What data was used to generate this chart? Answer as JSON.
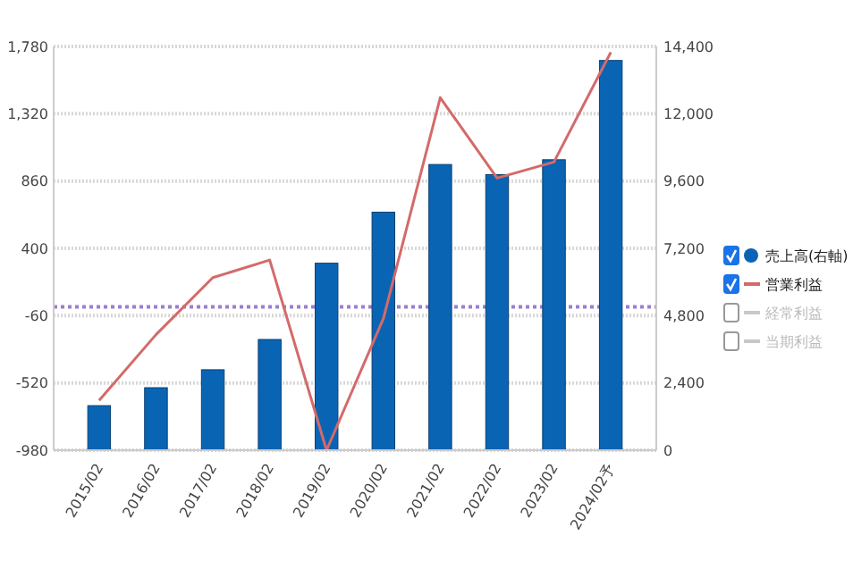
{
  "chart_data": {
    "type": "bar",
    "categories": [
      "2015/02",
      "2016/02",
      "2017/02",
      "2018/02",
      "2019/02",
      "2020/02",
      "2021/02",
      "2022/02",
      "2023/02",
      "2024/02予"
    ],
    "series": [
      {
        "name": "売上高(右軸)",
        "axis": "y2",
        "color": "#0a64b4",
        "values": [
          1590,
          2230,
          2870,
          3950,
          6670,
          8490,
          10190,
          9830,
          10360,
          13900
        ]
      },
      {
        "name": "営業利益",
        "type": "line",
        "color": "#d46a6a",
        "values": [
          -640,
          -190,
          200,
          320,
          -980,
          -80,
          1430,
          880,
          990,
          1740
        ]
      },
      {
        "name": "経常利益",
        "type": "line",
        "color": "#c8c8c8",
        "values": [
          null,
          null,
          null,
          null,
          null,
          null,
          null,
          null,
          null,
          null
        ]
      },
      {
        "name": "当期利益",
        "type": "line",
        "color": "#c8c8c8",
        "values": [
          null,
          null,
          null,
          null,
          null,
          null,
          null,
          null,
          null,
          null
        ]
      }
    ],
    "ylim": [
      -980,
      1780
    ],
    "yticks": [
      {
        "value": 1780,
        "label": "1,780"
      },
      {
        "value": 1320,
        "label": "1,320"
      },
      860,
      400,
      -60,
      -520,
      -980
    ],
    "y2lim": [
      0,
      14400
    ],
    "y2ticks": [
      0,
      {
        "value": 2400,
        "label": "2,400"
      },
      {
        "value": 4800,
        "label": "4,800"
      },
      {
        "value": 7200,
        "label": "7,200"
      },
      {
        "value": 9600,
        "label": "9,600"
      },
      {
        "value": 12000,
        "label": "12,000"
      },
      {
        "value": 14400,
        "label": "14,400"
      }
    ],
    "ref_lines": [
      {
        "axis": "y",
        "value": 0,
        "color": "#9a7fd0",
        "line_style": "dotted"
      }
    ],
    "grid": "y",
    "legend": "right"
  }
}
